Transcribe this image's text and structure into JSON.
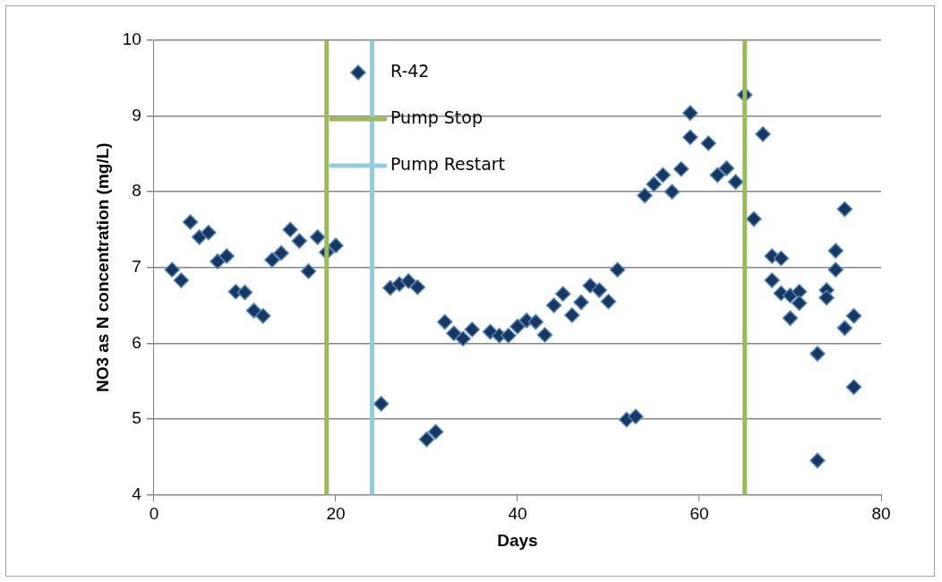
{
  "chart_data": {
    "type": "scatter",
    "xlabel": "Days",
    "ylabel": "NO3 as N concentration (mg/L)",
    "xlim": [
      0,
      80
    ],
    "xticks": [
      0,
      20,
      40,
      60,
      80
    ],
    "ylim": [
      4,
      10
    ],
    "yticks": [
      4,
      5,
      6,
      7,
      8,
      9,
      10
    ],
    "grid": "y",
    "legend": "top",
    "marker": "diamond",
    "series": [
      {
        "name": "R-42",
        "color": "#17375e",
        "x": [
          2,
          3,
          4,
          5,
          6,
          7,
          8,
          9,
          10,
          11,
          12,
          13,
          14,
          15,
          16,
          17,
          18,
          19,
          20,
          25,
          26,
          27,
          28,
          29,
          30,
          31,
          32,
          33,
          34,
          35,
          37,
          38,
          39,
          40,
          41,
          42,
          43,
          44,
          45,
          46,
          47,
          48,
          49,
          50,
          51,
          52,
          53,
          54,
          55,
          56,
          57,
          58,
          59,
          59,
          61,
          62,
          63,
          64,
          65,
          66,
          67,
          68,
          68,
          69,
          69,
          70,
          70,
          71,
          71,
          73,
          73,
          74,
          74,
          75,
          75,
          76,
          76,
          77,
          77
        ],
        "values": [
          6.97,
          6.83,
          7.6,
          7.4,
          7.46,
          7.08,
          7.15,
          6.68,
          6.67,
          6.43,
          6.36,
          7.1,
          7.19,
          7.5,
          7.35,
          6.95,
          7.4,
          7.2,
          7.29,
          5.2,
          6.73,
          6.78,
          6.82,
          6.74,
          4.73,
          4.83,
          6.28,
          6.13,
          6.06,
          6.18,
          6.15,
          6.1,
          6.1,
          6.22,
          6.3,
          6.28,
          6.11,
          6.5,
          6.65,
          6.37,
          6.54,
          6.76,
          6.7,
          6.55,
          6.97,
          4.99,
          5.03,
          7.95,
          8.1,
          8.22,
          8.0,
          8.3,
          9.04,
          8.72,
          8.64,
          8.22,
          8.31,
          8.13,
          9.28,
          7.64,
          8.76,
          7.15,
          6.83,
          7.12,
          6.66,
          6.63,
          6.33,
          6.68,
          6.53,
          5.86,
          4.45,
          6.7,
          6.6,
          7.22,
          6.97,
          7.77,
          6.2,
          6.36,
          5.42
        ]
      }
    ],
    "ref_lines": [
      {
        "axis": "x",
        "value": 19,
        "label": "Pump Stop",
        "color": "#9bbb59"
      },
      {
        "axis": "x",
        "value": 24,
        "label": "Pump Restart",
        "color": "#93cddd"
      },
      {
        "axis": "x",
        "value": 65,
        "color": "#9bbb59"
      }
    ]
  }
}
